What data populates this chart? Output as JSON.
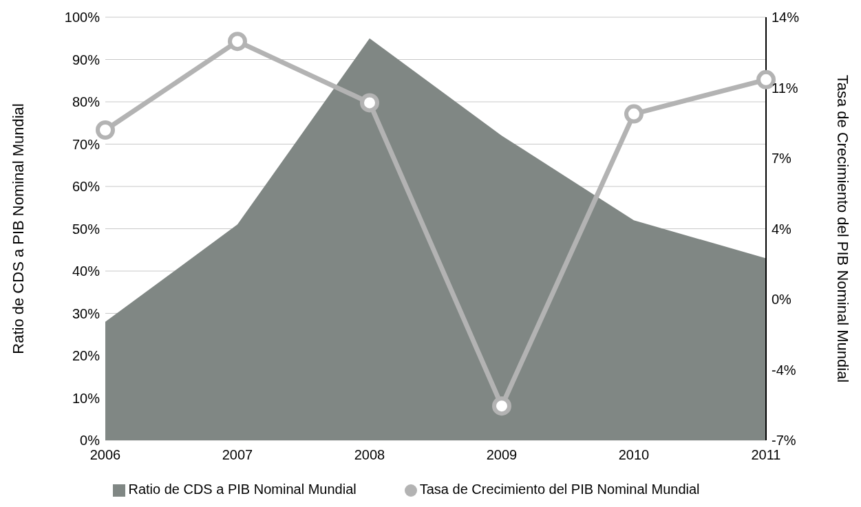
{
  "chart_data": {
    "type": "area",
    "categories": [
      "2006",
      "2007",
      "2008",
      "2009",
      "2010",
      "2011"
    ],
    "series": [
      {
        "name": "Ratio de CDS a PIB Nominal Mundial",
        "color": "#808784",
        "values": [
          28,
          51,
          95,
          72,
          52,
          43
        ]
      },
      {
        "name": "Tasa de Crecimiento del PIB Nominal Mundial",
        "type": "line",
        "axis": "y2",
        "color": "#b3b3b3",
        "values": [
          8.4,
          12.8,
          9.75,
          -5.3,
          9.2,
          10.9
        ],
        "marker": "circle"
      }
    ],
    "ylabel": "Ratio de CDS a PIB Nominal Mundial",
    "y2label": "Tasa de Crecimiento del PIB Nominal Mundial",
    "ylim": [
      0,
      100
    ],
    "yticks": [
      {
        "value": 0,
        "label": "0%"
      },
      {
        "value": 10,
        "label": "10%"
      },
      {
        "value": 20,
        "label": "20%"
      },
      {
        "value": 30,
        "label": "30%"
      },
      {
        "value": 40,
        "label": "40%"
      },
      {
        "value": 50,
        "label": "50%"
      },
      {
        "value": 60,
        "label": "60%"
      },
      {
        "value": 70,
        "label": "70%"
      },
      {
        "value": 80,
        "label": "80%"
      },
      {
        "value": 90,
        "label": "90%"
      },
      {
        "value": 100,
        "label": "100%"
      }
    ],
    "y2lim": [
      -7,
      14
    ],
    "y2ticks": [
      {
        "value": -7,
        "label": "-7%"
      },
      {
        "value": -3.5,
        "label": "-4%"
      },
      {
        "value": 0,
        "label": "0%"
      },
      {
        "value": 3.5,
        "label": "4%"
      },
      {
        "value": 7,
        "label": "7%"
      },
      {
        "value": 10.5,
        "label": "11%"
      },
      {
        "value": 14,
        "label": "14%"
      }
    ],
    "grid": "y",
    "legend": "bottom",
    "line_style": "solid"
  }
}
